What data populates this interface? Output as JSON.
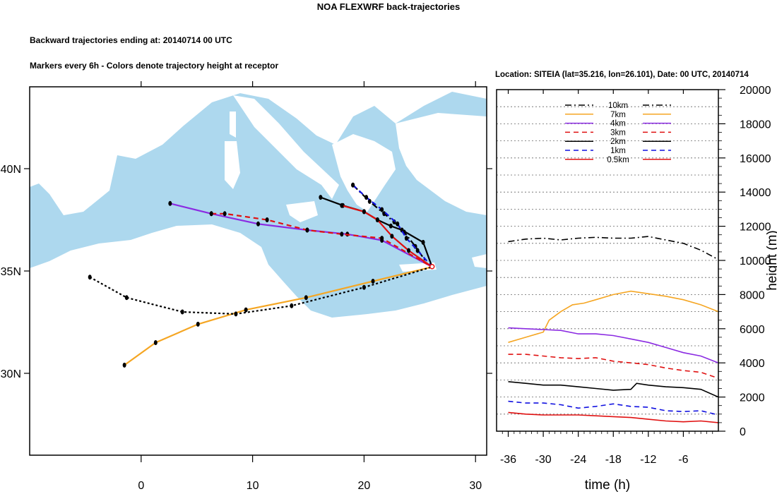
{
  "title": "NOA FLEXWRF back-trajectories",
  "subtitle1": "Backward trajectories ending at: 20140714  00 UTC",
  "subtitle2": "Markers every 6h - Colors denote trajectory height at receptor",
  "location_label": "Location: SITEIA (lat=35.216,  lon=26.101), Date: 00 UTC, 20140714",
  "colors": {
    "sea": "#add8ee",
    "land": "#ffffff",
    "10km": "#000000",
    "7km": "#f5a623",
    "4km": "#8b2be2",
    "3km": "#e01010",
    "2km": "#000000",
    "1km": "#1010e0",
    "0.5km": "#e01010"
  },
  "chart_data": [
    {
      "type": "line",
      "title": "",
      "xlabel": "",
      "ylabel": "",
      "xlim": [
        -10,
        31
      ],
      "ylim": [
        26,
        44
      ],
      "x_ticks": [
        0,
        10,
        20,
        30
      ],
      "y_ticks": [
        {
          "value": 30,
          "label": "30N"
        },
        {
          "value": 35,
          "label": "35N"
        },
        {
          "value": 40,
          "label": "40N"
        }
      ],
      "receptor": {
        "lon": 26.101,
        "lat": 35.216
      },
      "series": [
        {
          "key": "10km",
          "style": "dashdot",
          "points": [
            [
              19.0,
              39.2
            ],
            [
              20.5,
              38.4
            ],
            [
              21.8,
              37.8
            ],
            [
              22.7,
              37.4
            ],
            [
              23.6,
              36.9
            ],
            [
              24.6,
              36.2
            ],
            [
              25.5,
              35.5
            ]
          ]
        },
        {
          "key": "7km",
          "style": "solid",
          "points": [
            [
              -1.5,
              30.4
            ],
            [
              1.3,
              31.5
            ],
            [
              5.1,
              32.4
            ],
            [
              9.4,
              33.1
            ],
            [
              14.8,
              33.7
            ],
            [
              20.8,
              34.5
            ],
            [
              26.1,
              35.2
            ]
          ]
        },
        {
          "key": "4km",
          "style": "solid",
          "points": [
            [
              2.6,
              38.3
            ],
            [
              6.3,
              37.8
            ],
            [
              10.5,
              37.3
            ],
            [
              14.9,
              37.0
            ],
            [
              18.5,
              36.8
            ],
            [
              21.6,
              36.5
            ],
            [
              26.1,
              35.2
            ]
          ]
        },
        {
          "key": "3km",
          "style": "dash",
          "points": [
            [
              6.3,
              37.8
            ],
            [
              7.5,
              37.8
            ],
            [
              11.3,
              37.5
            ],
            [
              14.9,
              37.0
            ],
            [
              18.0,
              36.8
            ],
            [
              21.6,
              36.6
            ],
            [
              26.1,
              35.2
            ]
          ]
        },
        {
          "key": "2km",
          "style": "solid",
          "points": [
            [
              16.1,
              38.6
            ],
            [
              18.1,
              38.2
            ],
            [
              20.0,
              37.9
            ],
            [
              21.2,
              37.5
            ],
            [
              22.4,
              37.2
            ],
            [
              23.4,
              37.0
            ],
            [
              25.3,
              36.4
            ],
            [
              26.1,
              35.2
            ]
          ]
        },
        {
          "key": "1km",
          "style": "dash",
          "points": [
            [
              19.0,
              39.2
            ],
            [
              20.2,
              38.6
            ],
            [
              21.6,
              38.0
            ],
            [
              23.0,
              37.3
            ],
            [
              23.8,
              36.6
            ],
            [
              24.8,
              36.0
            ],
            [
              26.1,
              35.2
            ]
          ]
        },
        {
          "key": "0.5km",
          "style": "solid",
          "points": [
            [
              18.0,
              38.2
            ],
            [
              20.0,
              37.9
            ],
            [
              21.2,
              37.5
            ],
            [
              22.5,
              36.7
            ],
            [
              24.0,
              36.0
            ],
            [
              26.1,
              35.2
            ]
          ]
        },
        {
          "key": "10km",
          "style": "dot",
          "points": [
            [
              -4.6,
              34.7
            ],
            [
              -1.3,
              33.7
            ],
            [
              3.7,
              33.0
            ],
            [
              8.5,
              32.9
            ],
            [
              13.5,
              33.3
            ],
            [
              20.0,
              34.2
            ],
            [
              26.1,
              35.2
            ]
          ]
        }
      ]
    },
    {
      "type": "line",
      "title": "",
      "xlabel": "time (h)",
      "ylabel": "height (m)",
      "xlim": [
        -38,
        0
      ],
      "ylim": [
        0,
        20000
      ],
      "x_ticks": [
        -36,
        -30,
        -24,
        -18,
        -12,
        -6
      ],
      "y_ticks": [
        0,
        2000,
        4000,
        6000,
        8000,
        10000,
        12000,
        14000,
        16000,
        18000,
        20000
      ],
      "legend_position": "top",
      "series": [
        {
          "name": "10km",
          "style": "dashdot",
          "x": [
            -36,
            -33,
            -30,
            -27,
            -24,
            -21,
            -18,
            -15,
            -12,
            -9,
            -6,
            -3,
            0
          ],
          "y": [
            11100,
            11250,
            11300,
            11200,
            11300,
            11350,
            11300,
            11300,
            11400,
            11200,
            11000,
            10600,
            10050
          ]
        },
        {
          "name": "7km",
          "style": "solid",
          "x": [
            -36,
            -33,
            -30,
            -29,
            -27,
            -25,
            -23,
            -21,
            -18,
            -15,
            -12,
            -9,
            -6,
            -3,
            0
          ],
          "y": [
            5200,
            5500,
            5800,
            6500,
            7000,
            7400,
            7500,
            7700,
            8000,
            8200,
            8050,
            7900,
            7700,
            7400,
            7000
          ]
        },
        {
          "name": "4km",
          "style": "solid",
          "x": [
            -36,
            -33,
            -30,
            -27,
            -24,
            -21,
            -18,
            -15,
            -12,
            -9,
            -6,
            -3,
            0
          ],
          "y": [
            6050,
            6000,
            5950,
            5900,
            5700,
            5700,
            5600,
            5400,
            5200,
            4900,
            4600,
            4400,
            4000
          ]
        },
        {
          "name": "3km",
          "style": "dash",
          "x": [
            -36,
            -33,
            -30,
            -27,
            -24,
            -21,
            -18,
            -15,
            -12,
            -9,
            -6,
            -3,
            0
          ],
          "y": [
            4500,
            4500,
            4400,
            4300,
            4250,
            4300,
            4100,
            4000,
            3900,
            3700,
            3550,
            3450,
            3100
          ]
        },
        {
          "name": "2km",
          "style": "solid",
          "x": [
            -36,
            -33,
            -30,
            -27,
            -24,
            -21,
            -18,
            -15,
            -14,
            -12,
            -9,
            -6,
            -3,
            0
          ],
          "y": [
            2900,
            2800,
            2700,
            2700,
            2600,
            2500,
            2400,
            2450,
            2800,
            2700,
            2600,
            2550,
            2450,
            2000
          ]
        },
        {
          "name": "1km",
          "style": "dash",
          "x": [
            -36,
            -33,
            -30,
            -27,
            -24,
            -21,
            -18,
            -15,
            -12,
            -9,
            -6,
            -3,
            0
          ],
          "y": [
            1750,
            1650,
            1650,
            1550,
            1350,
            1450,
            1600,
            1450,
            1400,
            1200,
            1150,
            1200,
            950
          ]
        },
        {
          "name": "0.5km",
          "style": "solid",
          "x": [
            -36,
            -33,
            -30,
            -27,
            -24,
            -21,
            -18,
            -15,
            -12,
            -9,
            -6,
            -3,
            0
          ],
          "y": [
            1100,
            1000,
            950,
            950,
            950,
            900,
            850,
            800,
            700,
            600,
            550,
            600,
            500
          ]
        }
      ]
    }
  ]
}
